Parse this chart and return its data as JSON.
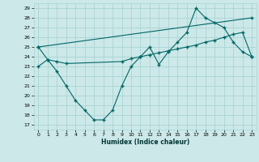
{
  "xlabel": "Humidex (Indice chaleur)",
  "bg_color": "#cce8e8",
  "grid_color": "#aad4d4",
  "line_color": "#006666",
  "xlim": [
    -0.5,
    23.5
  ],
  "ylim": [
    16.5,
    29.5
  ],
  "yticks": [
    17,
    18,
    19,
    20,
    21,
    22,
    23,
    24,
    25,
    26,
    27,
    28,
    29
  ],
  "xticks": [
    0,
    1,
    2,
    3,
    4,
    5,
    6,
    7,
    8,
    9,
    10,
    11,
    12,
    13,
    14,
    15,
    16,
    17,
    18,
    19,
    20,
    21,
    22,
    23
  ],
  "line1_x": [
    0,
    1,
    2,
    3,
    4,
    5,
    6,
    7,
    8,
    9,
    10,
    11,
    12,
    13,
    14,
    15,
    16,
    17,
    18,
    19,
    20,
    21,
    22,
    23
  ],
  "line1_y": [
    25.0,
    23.7,
    22.5,
    21.0,
    19.5,
    18.5,
    17.5,
    17.5,
    18.5,
    21.0,
    23.0,
    24.0,
    25.0,
    23.2,
    24.5,
    25.5,
    26.5,
    29.0,
    28.0,
    27.5,
    27.0,
    25.5,
    24.5,
    24.0
  ],
  "line2_x": [
    0,
    1,
    2,
    3,
    9,
    10,
    11,
    12,
    13,
    14,
    15,
    16,
    17,
    18,
    19,
    20,
    21,
    22,
    23
  ],
  "line2_y": [
    23.0,
    23.7,
    23.5,
    23.3,
    23.5,
    23.8,
    24.0,
    24.2,
    24.4,
    24.6,
    24.8,
    25.0,
    25.2,
    25.5,
    25.7,
    26.0,
    26.3,
    26.5,
    24.0
  ],
  "line3_x": [
    0,
    23
  ],
  "line3_y": [
    25.0,
    28.0
  ]
}
